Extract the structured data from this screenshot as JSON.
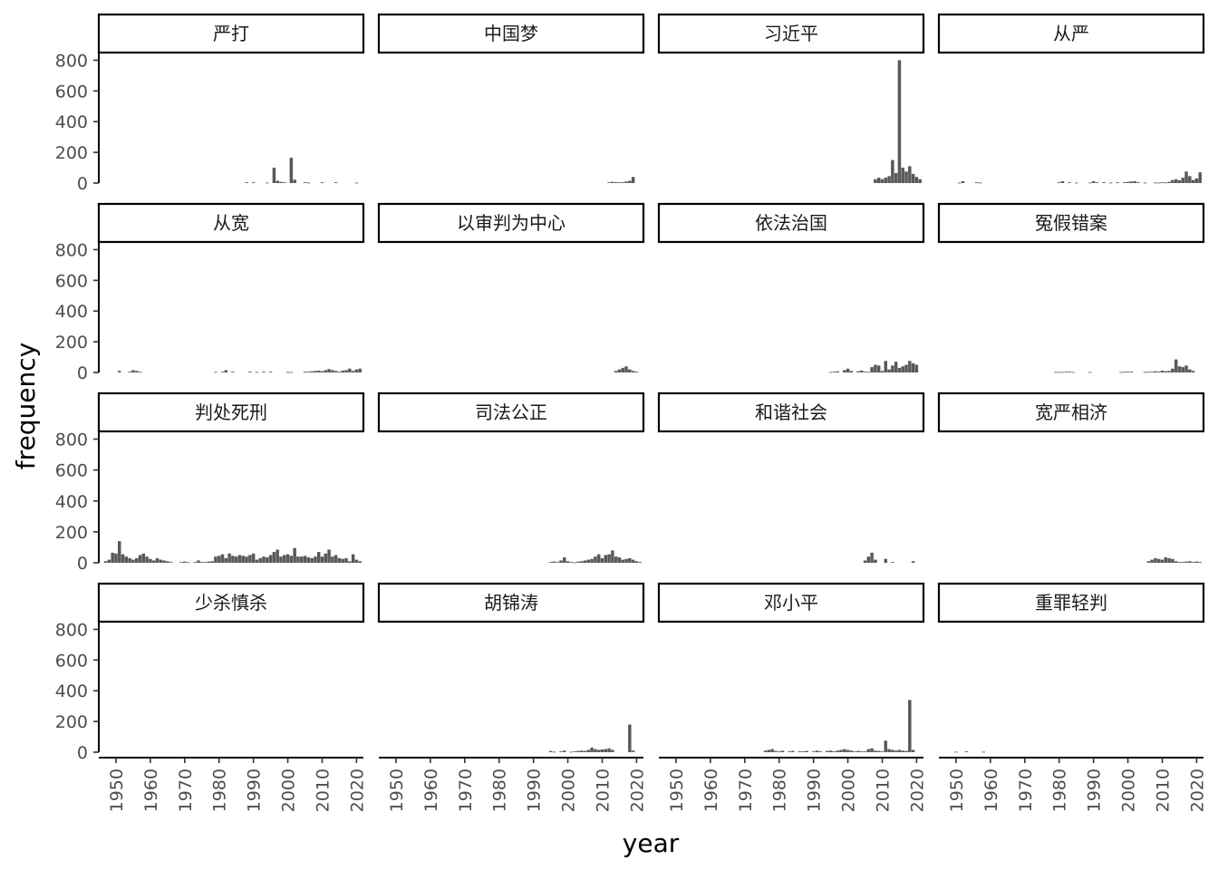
{
  "chart_data": {
    "type": "bar",
    "facet_layout": "4x4 grid",
    "xlabel": "year",
    "ylabel": "frequency",
    "xlim": [
      1945,
      2022
    ],
    "ylim": [
      0,
      850
    ],
    "x_ticks": [
      "1950",
      "1960",
      "1970",
      "1980",
      "1990",
      "2000",
      "2010",
      "2020"
    ],
    "y_ticks": [
      "0",
      "200",
      "400",
      "600",
      "800"
    ],
    "grid": false,
    "bar_color": "#595959",
    "facets": [
      {
        "label": "严打",
        "x": [
          1988,
          1990,
          1994,
          1996,
          1997,
          1998,
          1999,
          2001,
          2002,
          2005,
          2006,
          2010,
          2014,
          2020
        ],
        "values": [
          5,
          5,
          3,
          100,
          15,
          8,
          5,
          165,
          22,
          5,
          3,
          5,
          5,
          3
        ]
      },
      {
        "label": "中国梦",
        "x": [
          2012,
          2013,
          2014,
          2015,
          2016,
          2017,
          2018,
          2019
        ],
        "values": [
          5,
          8,
          6,
          5,
          5,
          10,
          15,
          40
        ]
      },
      {
        "label": "习近平",
        "x": [
          2008,
          2009,
          2010,
          2011,
          2012,
          2013,
          2014,
          2015,
          2016,
          2017,
          2018,
          2019,
          2020,
          2021
        ],
        "values": [
          25,
          35,
          25,
          35,
          45,
          150,
          65,
          800,
          100,
          75,
          110,
          60,
          40,
          25
        ]
      },
      {
        "label": "从严",
        "x": [
          1951,
          1952,
          1956,
          1957,
          1980,
          1981,
          1983,
          1985,
          1989,
          1990,
          1991,
          1993,
          1995,
          1997,
          1999,
          2000,
          2001,
          2002,
          2003,
          2005,
          2008,
          2009,
          2010,
          2011,
          2012,
          2013,
          2014,
          2015,
          2016,
          2017,
          2018,
          2019,
          2020,
          2021
        ],
        "values": [
          3,
          12,
          5,
          3,
          5,
          12,
          5,
          3,
          3,
          12,
          5,
          5,
          3,
          5,
          5,
          8,
          10,
          12,
          5,
          3,
          3,
          3,
          5,
          3,
          8,
          20,
          25,
          18,
          35,
          75,
          45,
          20,
          30,
          70
        ]
      },
      {
        "label": "从宽",
        "x": [
          1951,
          1954,
          1955,
          1956,
          1957,
          1979,
          1981,
          1982,
          1984,
          1989,
          1991,
          1993,
          1995,
          2000,
          2001,
          2005,
          2006,
          2007,
          2008,
          2009,
          2010,
          2011,
          2012,
          2013,
          2014,
          2015,
          2016,
          2017,
          2018,
          2019,
          2020,
          2021
        ],
        "values": [
          10,
          5,
          15,
          10,
          5,
          3,
          5,
          15,
          5,
          5,
          3,
          5,
          5,
          3,
          3,
          5,
          5,
          8,
          10,
          12,
          8,
          15,
          22,
          15,
          10,
          5,
          12,
          15,
          25,
          10,
          20,
          25
        ]
      },
      {
        "label": "以审判为中心",
        "x": [
          2014,
          2015,
          2016,
          2017,
          2018,
          2019,
          2020
        ],
        "values": [
          10,
          20,
          30,
          40,
          20,
          10,
          5
        ]
      },
      {
        "label": "依法治国",
        "x": [
          1995,
          1996,
          1997,
          1999,
          2000,
          2001,
          2003,
          2004,
          2005,
          2006,
          2007,
          2008,
          2009,
          2010,
          2011,
          2012,
          2013,
          2014,
          2015,
          2016,
          2017,
          2018,
          2019,
          2020
        ],
        "values": [
          3,
          5,
          8,
          15,
          25,
          10,
          8,
          12,
          5,
          3,
          35,
          50,
          45,
          10,
          75,
          20,
          45,
          70,
          30,
          40,
          50,
          75,
          60,
          50
        ]
      },
      {
        "label": "冤假错案",
        "x": [
          1979,
          1980,
          1981,
          1982,
          1983,
          1984,
          1989,
          1998,
          1999,
          2000,
          2001,
          2005,
          2006,
          2007,
          2008,
          2009,
          2010,
          2011,
          2012,
          2013,
          2014,
          2015,
          2016,
          2017,
          2018,
          2019
        ],
        "values": [
          3,
          3,
          3,
          5,
          5,
          3,
          3,
          3,
          5,
          5,
          5,
          3,
          5,
          5,
          8,
          5,
          12,
          8,
          10,
          25,
          85,
          40,
          35,
          45,
          20,
          10
        ]
      },
      {
        "label": "判处死刑",
        "x": [
          1947,
          1948,
          1949,
          1950,
          1951,
          1952,
          1953,
          1954,
          1955,
          1956,
          1957,
          1958,
          1959,
          1960,
          1961,
          1962,
          1963,
          1964,
          1965,
          1966,
          1969,
          1970,
          1971,
          1973,
          1974,
          1975,
          1976,
          1977,
          1978,
          1979,
          1980,
          1981,
          1982,
          1983,
          1984,
          1985,
          1986,
          1987,
          1988,
          1989,
          1990,
          1991,
          1992,
          1993,
          1994,
          1995,
          1996,
          1997,
          1998,
          1999,
          2000,
          2001,
          2002,
          2003,
          2004,
          2005,
          2006,
          2007,
          2008,
          2009,
          2010,
          2011,
          2012,
          2013,
          2014,
          2015,
          2016,
          2017,
          2018,
          2019,
          2020,
          2021
        ],
        "values": [
          10,
          20,
          65,
          60,
          140,
          55,
          40,
          30,
          20,
          30,
          50,
          60,
          40,
          25,
          15,
          30,
          20,
          15,
          10,
          5,
          5,
          8,
          3,
          5,
          15,
          5,
          5,
          8,
          10,
          40,
          45,
          55,
          30,
          60,
          45,
          40,
          50,
          45,
          40,
          50,
          60,
          20,
          30,
          40,
          35,
          50,
          70,
          85,
          40,
          50,
          55,
          45,
          95,
          40,
          40,
          45,
          35,
          30,
          40,
          70,
          40,
          60,
          85,
          40,
          50,
          30,
          25,
          30,
          10,
          55,
          20,
          10
        ]
      },
      {
        "label": "司法公正",
        "x": [
          1995,
          1996,
          1997,
          1998,
          1999,
          2000,
          2001,
          2002,
          2003,
          2004,
          2005,
          2006,
          2007,
          2008,
          2009,
          2010,
          2011,
          2012,
          2013,
          2014,
          2015,
          2016,
          2017,
          2018,
          2019,
          2020,
          2021
        ],
        "values": [
          5,
          8,
          5,
          15,
          35,
          10,
          5,
          3,
          8,
          10,
          15,
          20,
          25,
          40,
          55,
          30,
          50,
          55,
          80,
          40,
          35,
          20,
          25,
          30,
          20,
          10,
          5
        ]
      },
      {
        "label": "和谐社会",
        "x": [
          2005,
          2006,
          2007,
          2008,
          2011,
          2013,
          2019
        ],
        "values": [
          15,
          40,
          65,
          20,
          25,
          5,
          10
        ]
      },
      {
        "label": "宽严相济",
        "x": [
          2006,
          2007,
          2008,
          2009,
          2010,
          2011,
          2012,
          2013,
          2014,
          2015,
          2016,
          2017,
          2018,
          2019,
          2020,
          2021
        ],
        "values": [
          10,
          20,
          30,
          25,
          20,
          35,
          30,
          25,
          10,
          5,
          5,
          8,
          10,
          5,
          8,
          5
        ]
      },
      {
        "label": "少杀慎杀",
        "x": [],
        "values": []
      },
      {
        "label": "胡锦涛",
        "x": [
          1995,
          1996,
          1998,
          1999,
          2001,
          2002,
          2003,
          2004,
          2005,
          2006,
          2007,
          2008,
          2009,
          2010,
          2011,
          2012,
          2013,
          2018,
          2019
        ],
        "values": [
          8,
          3,
          5,
          10,
          3,
          5,
          8,
          10,
          8,
          15,
          30,
          20,
          15,
          18,
          20,
          25,
          15,
          180,
          10
        ]
      },
      {
        "label": "邓小平",
        "x": [
          1976,
          1977,
          1978,
          1979,
          1980,
          1981,
          1983,
          1984,
          1986,
          1987,
          1988,
          1990,
          1991,
          1992,
          1994,
          1995,
          1996,
          1997,
          1998,
          1999,
          2000,
          2001,
          2002,
          2003,
          2004,
          2005,
          2006,
          2007,
          2008,
          2009,
          2010,
          2011,
          2012,
          2013,
          2014,
          2015,
          2016,
          2017,
          2018,
          2019
        ],
        "values": [
          10,
          15,
          20,
          8,
          5,
          10,
          5,
          8,
          5,
          5,
          8,
          5,
          10,
          5,
          8,
          10,
          5,
          10,
          15,
          20,
          15,
          10,
          5,
          8,
          5,
          5,
          20,
          25,
          10,
          8,
          5,
          75,
          20,
          15,
          10,
          15,
          10,
          8,
          340,
          15
        ]
      },
      {
        "label": "重罪轻判",
        "x": [
          1950,
          1953,
          1958
        ],
        "values": [
          3,
          5,
          3
        ]
      }
    ]
  }
}
